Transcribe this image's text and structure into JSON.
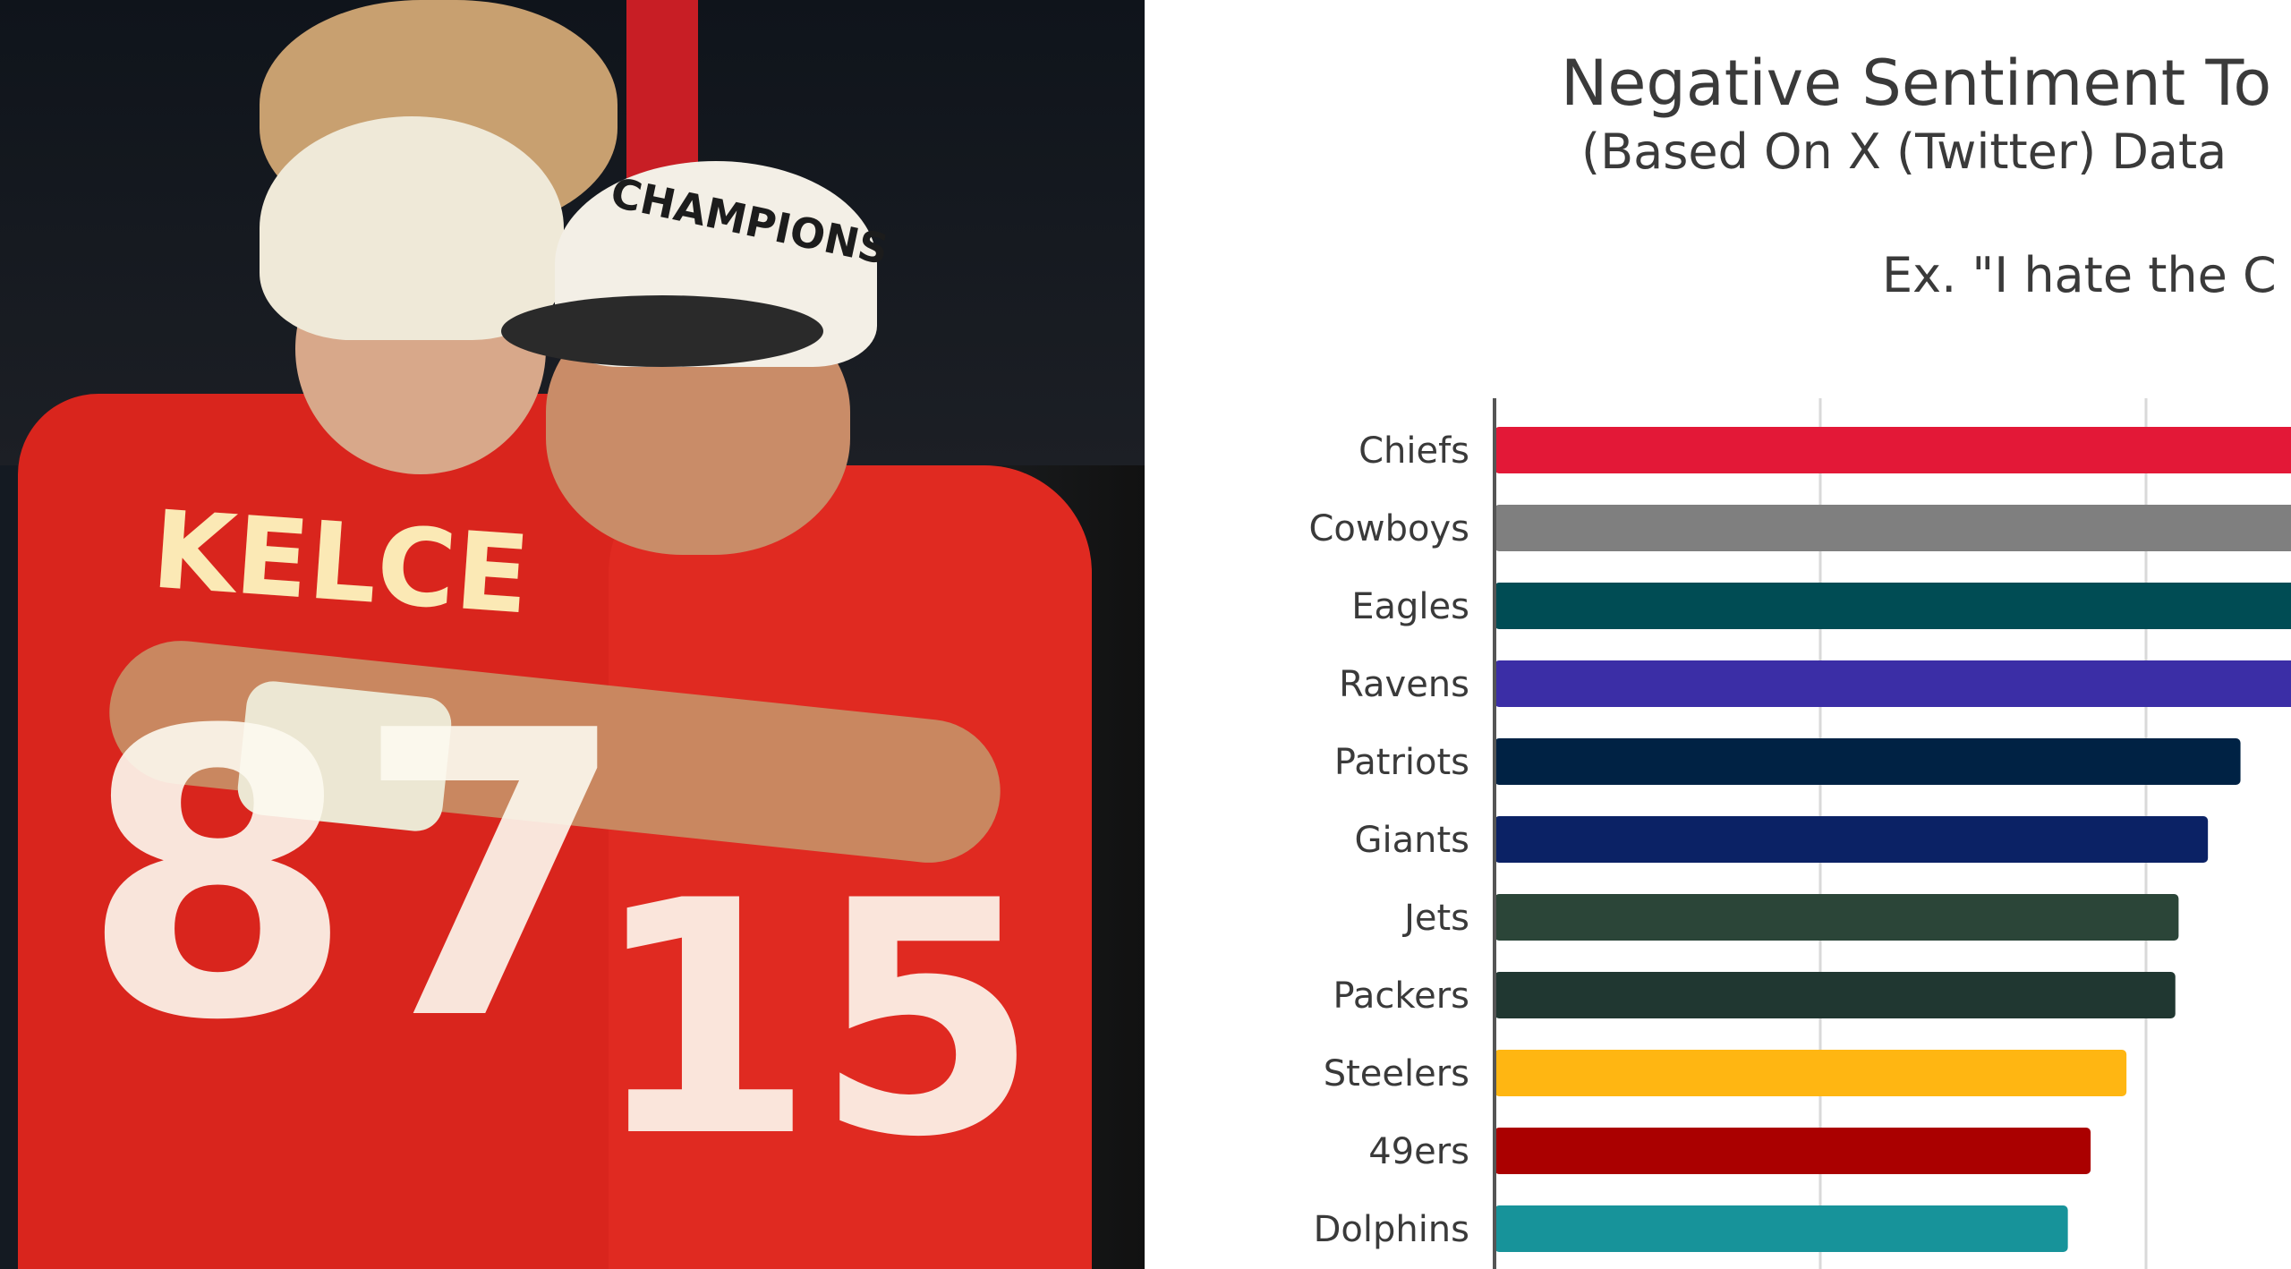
{
  "photo": {
    "jersey_name": "KELCE",
    "jersey_number_left": "87",
    "jersey_number_right": "15",
    "cap_text": "CHAMPIONS"
  },
  "chart_data": {
    "type": "bar",
    "orientation": "horizontal",
    "title": "Negative Sentiment To",
    "subtitle": "(Based On X (Twitter) Data",
    "annotation": "Ex. \"I hate the C",
    "categories": [
      "Chiefs",
      "Cowboys",
      "Eagles",
      "Ravens",
      "Patriots",
      "Giants",
      "Jets",
      "Packers",
      "Steelers",
      "49ers",
      "Dolphins"
    ],
    "values": [
      2.6,
      2.6,
      2.6,
      2.6,
      2.29,
      2.19,
      2.1,
      2.09,
      1.94,
      1.83,
      1.76
    ],
    "value_note_unit": "gridline intervals",
    "colors": [
      "#E31837",
      "#7F7F7F",
      "#004C54",
      "#3B2EA6",
      "#002244",
      "#0B2265",
      "#2B4538",
      "#203731",
      "#FFB612",
      "#AA0000",
      "#17939A"
    ],
    "grid": true,
    "gridlines_at": [
      1,
      2
    ]
  }
}
